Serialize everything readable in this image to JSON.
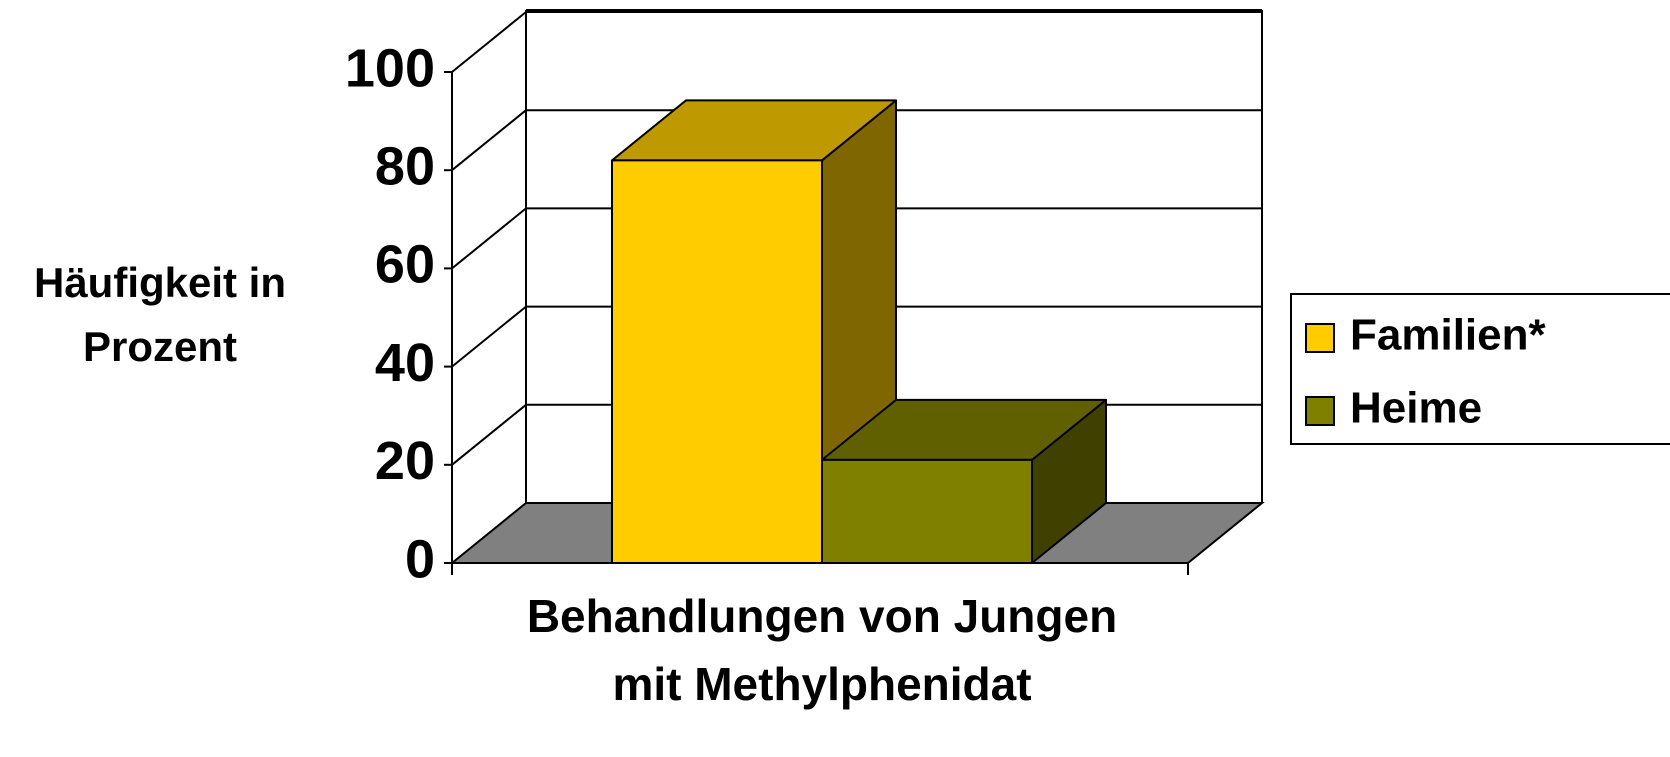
{
  "chart_data": {
    "type": "bar3d",
    "ylabel": [
      "Häufigkeit in",
      "Prozent"
    ],
    "xlabel": [
      "Behandlungen von Jungen",
      "mit Methylphenidat"
    ],
    "series": [
      {
        "name": "Familien*",
        "color": "#ffcc00",
        "values": [
          82
        ]
      },
      {
        "name": "Heime",
        "color": "#808000",
        "values": [
          21
        ]
      }
    ],
    "ylim": [
      0,
      100
    ],
    "yticks": [
      0,
      20,
      40,
      60,
      80,
      100
    ],
    "grid": true,
    "legend": "right"
  }
}
